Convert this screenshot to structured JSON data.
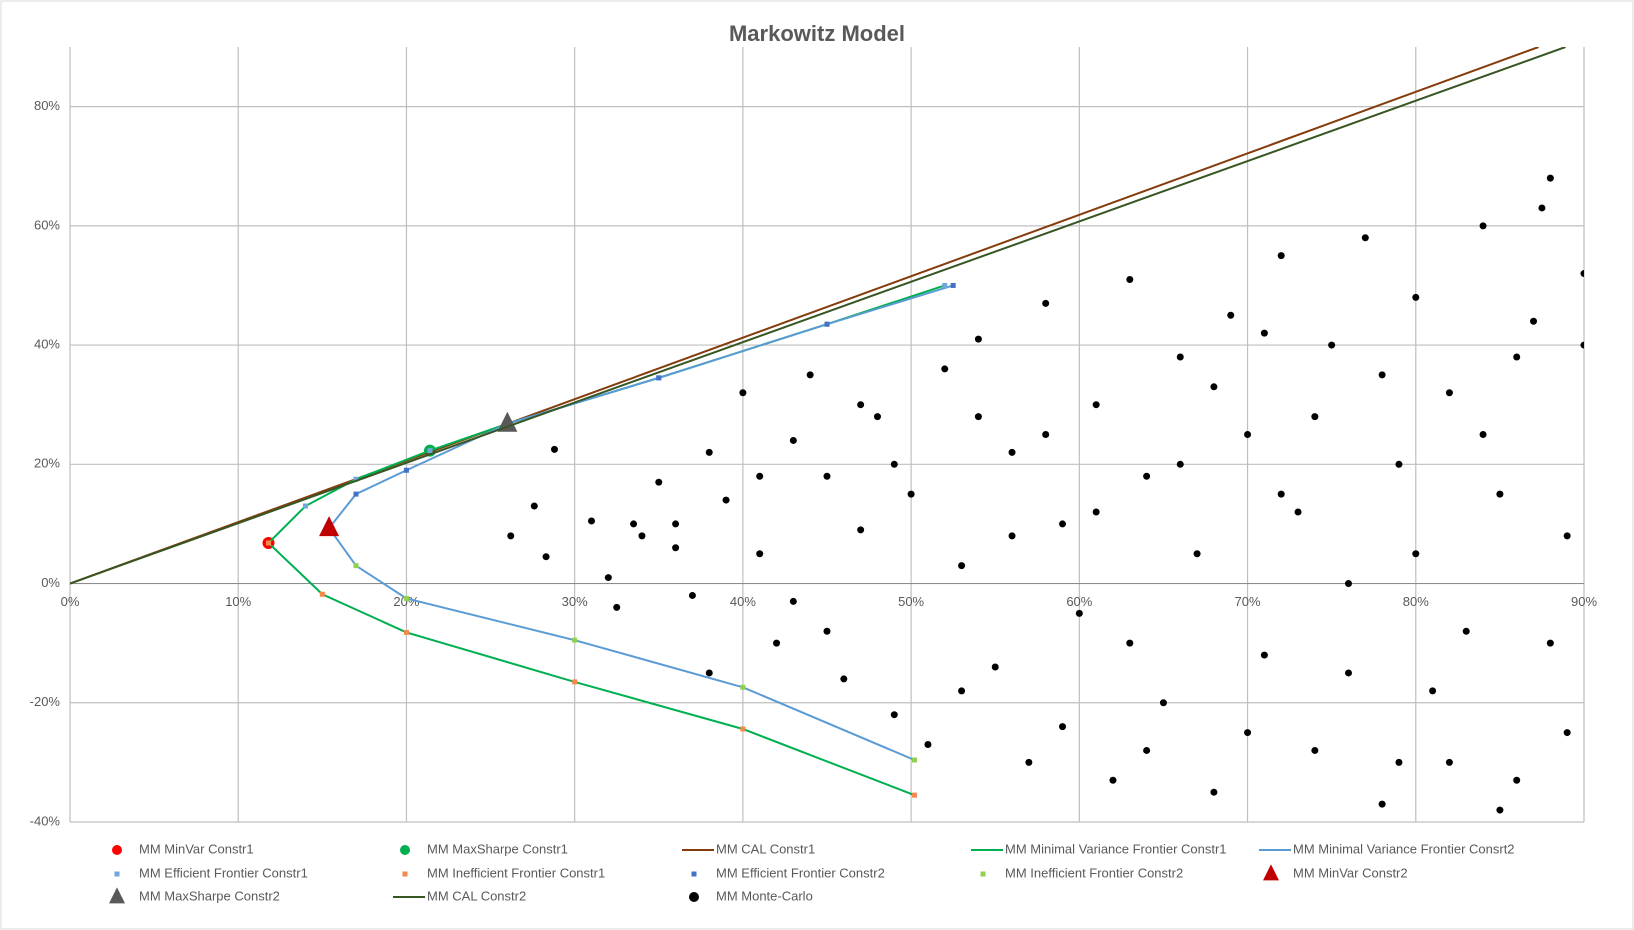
{
  "chart_data": {
    "type": "scatter",
    "title": "Markowitz Model",
    "xlim": [
      0,
      90
    ],
    "ylim": [
      -40,
      90
    ],
    "xticks": [
      {
        "value": 0,
        "label": "0%"
      },
      {
        "value": 10,
        "label": "10%"
      },
      {
        "value": 20,
        "label": "20%"
      },
      {
        "value": 30,
        "label": "30%"
      },
      {
        "value": 40,
        "label": "40%"
      },
      {
        "value": 50,
        "label": "50%"
      },
      {
        "value": 60,
        "label": "60%"
      },
      {
        "value": 70,
        "label": "70%"
      },
      {
        "value": 80,
        "label": "80%"
      },
      {
        "value": 90,
        "label": "90%"
      }
    ],
    "yticks": [
      {
        "value": -40,
        "label": "-40%"
      },
      {
        "value": -20,
        "label": "-20%"
      },
      {
        "value": 0,
        "label": "0%"
      },
      {
        "value": 20,
        "label": "20%"
      },
      {
        "value": 40,
        "label": "40%"
      },
      {
        "value": 60,
        "label": "60%"
      },
      {
        "value": 80,
        "label": "80%"
      }
    ],
    "grid": true,
    "series": [
      {
        "name": "MM MinVar Constr1",
        "color": "#ff0000",
        "marker": "circle",
        "line": false,
        "x": [
          11.8
        ],
        "values": [
          6.8
        ]
      },
      {
        "name": "MM MaxSharpe Constr1",
        "color": "#00b050",
        "marker": "circle",
        "line": false,
        "x": [
          21.4
        ],
        "values": [
          22.3
        ]
      },
      {
        "name": "MM CAL Constr1",
        "color": "#843c0c",
        "marker": "none",
        "line": true,
        "x": [
          0,
          87.3
        ],
        "values": [
          0,
          90
        ]
      },
      {
        "name": "MM Minimal Variance Frontier Constr1",
        "color": "#00b050",
        "marker": "none",
        "line": true,
        "x": [
          50.2,
          40,
          30,
          20,
          15,
          11.8,
          14,
          17,
          21.4,
          26,
          35,
          45,
          52
        ],
        "values": [
          -35.5,
          -24.4,
          -16.5,
          -8.2,
          -1.8,
          6.8,
          13,
          17.5,
          22.3,
          26.8,
          34.5,
          43.5,
          50
        ]
      },
      {
        "name": "MM Minimal Variance Frontier Consrt2",
        "color": "#5b9bd5",
        "marker": "none",
        "line": true,
        "x": [
          50.2,
          40,
          30,
          20,
          17,
          15.4,
          17,
          20,
          26,
          35,
          45,
          52.5
        ],
        "values": [
          -29.6,
          -17.4,
          -9.5,
          -2.5,
          3,
          9.3,
          15,
          19,
          26.8,
          34.5,
          43.5,
          50
        ]
      },
      {
        "name": "MM Efficient Frontier Constr1",
        "color": "#6fa8dc",
        "marker": "square",
        "line": false,
        "x": [
          11.8,
          14,
          17,
          21.4,
          26,
          35,
          45,
          52
        ],
        "values": [
          6.8,
          13,
          17.5,
          22.3,
          26.8,
          34.5,
          43.5,
          50
        ]
      },
      {
        "name": "MM Inefficient Frontier Constr1",
        "color": "#f4894a",
        "marker": "square",
        "line": false,
        "x": [
          11.8,
          15,
          20,
          30,
          40,
          50.2
        ],
        "values": [
          6.8,
          -1.8,
          -8.2,
          -16.5,
          -24.4,
          -35.5
        ]
      },
      {
        "name": "MM Efficient Frontier Constr2",
        "color": "#4472c4",
        "marker": "square",
        "line": false,
        "x": [
          15.4,
          17,
          20,
          26,
          35,
          45,
          52.5
        ],
        "values": [
          9.3,
          15,
          19,
          26.8,
          34.5,
          43.5,
          50
        ]
      },
      {
        "name": "MM Inefficient Frontier Constr2",
        "color": "#92d050",
        "marker": "square",
        "line": false,
        "x": [
          15.4,
          17,
          20,
          30,
          40,
          50.2
        ],
        "values": [
          9.3,
          3,
          -2.5,
          -9.5,
          -17.4,
          -29.6
        ]
      },
      {
        "name": "MM MinVar Constr2",
        "color": "#c00000",
        "marker": "triangle",
        "line": false,
        "x": [
          15.4
        ],
        "values": [
          9.3
        ]
      },
      {
        "name": "MM MaxSharpe Constr2",
        "color": "#595959",
        "marker": "triangle",
        "line": false,
        "x": [
          26
        ],
        "values": [
          26.8
        ]
      },
      {
        "name": "MM CAL Constr2",
        "color": "#375623",
        "marker": "none",
        "line": true,
        "x": [
          0,
          88.9
        ],
        "values": [
          0,
          90
        ]
      },
      {
        "name": "MM Monte-Carlo",
        "color": "#000000",
        "marker": "circle",
        "line": false,
        "x": [
          28.8,
          26.2,
          27.6,
          28.3,
          31,
          32,
          33.5,
          32.5,
          35,
          36,
          37,
          38,
          39,
          40,
          41,
          42,
          43,
          44,
          45,
          46,
          47,
          48,
          49,
          50,
          51,
          52,
          53,
          54,
          55,
          56,
          57,
          58,
          59,
          60,
          61,
          62,
          63,
          64,
          65,
          66,
          67,
          68,
          69,
          70,
          71,
          72,
          73,
          74,
          75,
          76,
          77,
          78,
          79,
          80,
          81,
          82,
          83,
          84,
          85,
          86,
          87,
          88,
          89,
          90,
          41,
          43,
          47,
          53,
          56,
          58,
          61,
          63,
          66,
          68,
          70,
          72,
          74,
          76,
          78,
          80,
          82,
          84,
          86,
          88,
          89,
          87.5,
          90,
          85,
          79,
          71,
          64,
          59,
          54,
          49,
          45,
          38,
          36,
          34
        ],
        "values": [
          22.5,
          8,
          13,
          4.5,
          10.5,
          1,
          10,
          -4,
          17,
          6,
          -2,
          22,
          14,
          32,
          5,
          -10,
          24,
          35,
          18,
          -16,
          9,
          28,
          -22,
          15,
          -27,
          36,
          3,
          41,
          -14,
          22,
          -30,
          47,
          10,
          -5,
          30,
          -33,
          51,
          18,
          -20,
          38,
          5,
          -35,
          45,
          25,
          -12,
          55,
          12,
          -28,
          40,
          0,
          58,
          -37,
          20,
          48,
          -18,
          32,
          -8,
          60,
          15,
          -33,
          44,
          68,
          -25,
          52,
          18,
          -3,
          30,
          -18,
          8,
          25,
          12,
          -10,
          20,
          33,
          -25,
          15,
          28,
          -15,
          35,
          5,
          -30,
          25,
          38,
          -10,
          8,
          63,
          40,
          -38,
          -30,
          42,
          -28,
          -24,
          28,
          20,
          -8,
          -15,
          10,
          8
        ]
      }
    ]
  }
}
